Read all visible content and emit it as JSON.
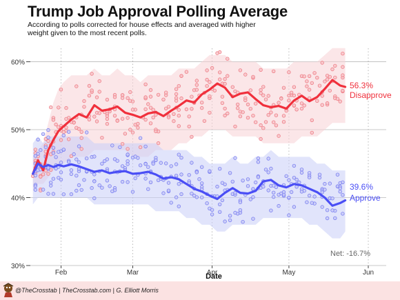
{
  "header": {
    "title": "Trump Job Approval Polling Average",
    "subtitle": "According to polls corrected for house effects and averaged with higher weight given to the most recent polls."
  },
  "footer": {
    "credit": "@TheCrosstab | TheCrosstab.com | G. Elliott Morris"
  },
  "colors": {
    "approve": "#4a4ef5",
    "disapprove": "#f0303c",
    "approve_band": "#c9cdf7",
    "disapprove_band": "#f8d1d5",
    "grid": "#9a9a9a",
    "footer_bg": "#fbe2e2"
  },
  "chart_data": {
    "type": "line",
    "xlabel": "Date",
    "ylabel": "",
    "x_ticks": [
      "Feb",
      "Mar",
      "Apr",
      "May",
      "Jun"
    ],
    "y_ticks": [
      "30%",
      "40%",
      "50%",
      "60%"
    ],
    "ylim": [
      30,
      63
    ],
    "xlim": [
      "2017-01-20",
      "2017-06-08"
    ],
    "grid": "horizontal solid at 30/40/50/60; vertical dotted at month starts",
    "legend": "inline labels at right end of lines",
    "series": [
      {
        "name": "Disapprove",
        "end_label": "56.3%",
        "color": "#f0303c",
        "x": [
          "2017-01-21",
          "2017-01-23",
          "2017-01-25",
          "2017-01-27",
          "2017-01-29",
          "2017-01-31",
          "2017-02-02",
          "2017-02-05",
          "2017-02-08",
          "2017-02-11",
          "2017-02-14",
          "2017-02-17",
          "2017-02-20",
          "2017-02-23",
          "2017-02-26",
          "2017-03-01",
          "2017-03-04",
          "2017-03-07",
          "2017-03-10",
          "2017-03-13",
          "2017-03-16",
          "2017-03-19",
          "2017-03-22",
          "2017-03-25",
          "2017-03-28",
          "2017-03-31",
          "2017-04-03",
          "2017-04-06",
          "2017-04-09",
          "2017-04-12",
          "2017-04-15",
          "2017-04-18",
          "2017-04-21",
          "2017-04-24",
          "2017-04-27",
          "2017-04-30",
          "2017-05-03",
          "2017-05-06",
          "2017-05-09",
          "2017-05-12",
          "2017-05-15",
          "2017-05-18",
          "2017-05-21",
          "2017-05-23"
        ],
        "y": [
          43.5,
          45.5,
          44.0,
          47.0,
          48.5,
          49.8,
          50.5,
          51.5,
          52.3,
          51.8,
          53.6,
          52.8,
          53.0,
          53.4,
          52.5,
          52.2,
          51.8,
          52.4,
          52.6,
          52.0,
          52.8,
          53.5,
          54.3,
          54.0,
          55.2,
          55.9,
          56.8,
          56.2,
          54.8,
          55.3,
          55.5,
          54.5,
          53.6,
          53.3,
          53.5,
          53.1,
          54.3,
          55.0,
          54.2,
          54.8,
          56.0,
          57.3,
          56.5,
          56.3
        ]
      },
      {
        "name": "Approve",
        "end_label": "39.6%",
        "color": "#4a4ef5",
        "x": [
          "2017-01-21",
          "2017-01-23",
          "2017-01-25",
          "2017-01-27",
          "2017-01-29",
          "2017-01-31",
          "2017-02-02",
          "2017-02-05",
          "2017-02-08",
          "2017-02-11",
          "2017-02-14",
          "2017-02-17",
          "2017-02-20",
          "2017-02-23",
          "2017-02-26",
          "2017-03-01",
          "2017-03-04",
          "2017-03-07",
          "2017-03-10",
          "2017-03-13",
          "2017-03-16",
          "2017-03-19",
          "2017-03-22",
          "2017-03-25",
          "2017-03-28",
          "2017-03-31",
          "2017-04-03",
          "2017-04-06",
          "2017-04-09",
          "2017-04-12",
          "2017-04-15",
          "2017-04-18",
          "2017-04-21",
          "2017-04-24",
          "2017-04-27",
          "2017-04-30",
          "2017-05-03",
          "2017-05-06",
          "2017-05-09",
          "2017-05-12",
          "2017-05-15",
          "2017-05-18",
          "2017-05-21",
          "2017-05-23"
        ],
        "y": [
          43.5,
          45.0,
          44.5,
          44.8,
          44.5,
          44.8,
          44.6,
          44.9,
          44.6,
          44.2,
          43.8,
          44.0,
          43.6,
          43.8,
          43.9,
          43.5,
          43.6,
          43.8,
          43.4,
          42.8,
          43.0,
          42.7,
          42.0,
          41.3,
          40.9,
          40.3,
          39.8,
          40.7,
          41.4,
          40.7,
          40.6,
          41.0,
          42.4,
          42.6,
          41.8,
          41.5,
          42.0,
          41.8,
          41.3,
          40.8,
          40.0,
          38.8,
          39.2,
          39.6
        ]
      }
    ],
    "bands": [
      {
        "series": "Disapprove",
        "upper": [
          46,
          47,
          48,
          51,
          54,
          56,
          57,
          58,
          58,
          58,
          59,
          58,
          58,
          59,
          58,
          58,
          57,
          58,
          58,
          58,
          58,
          59,
          59,
          59,
          60,
          61,
          61,
          61,
          60,
          60,
          60,
          60,
          59,
          59,
          59,
          59,
          60,
          60,
          60,
          60,
          61,
          62,
          62,
          62
        ],
        "lower": [
          41,
          42,
          42,
          43,
          44,
          45,
          45,
          46,
          46,
          46,
          47,
          47,
          47,
          47,
          47,
          46,
          46,
          46,
          47,
          47,
          47,
          48,
          48,
          49,
          49,
          50,
          50,
          50,
          49,
          49,
          49,
          49,
          48,
          48,
          48,
          48,
          48,
          49,
          49,
          49,
          50,
          51,
          51,
          51
        ]
      },
      {
        "series": "Approve",
        "upper": [
          48,
          49,
          48,
          49,
          49,
          49,
          49,
          49,
          49,
          49,
          48,
          48,
          48,
          48,
          48,
          48,
          48,
          48,
          48,
          47,
          47,
          47,
          47,
          46,
          46,
          45,
          45,
          45,
          46,
          45,
          45,
          46,
          46,
          47,
          46,
          46,
          46,
          46,
          46,
          45,
          45,
          44,
          44,
          44
        ],
        "lower": [
          39,
          40,
          40,
          40,
          40,
          40,
          40,
          40,
          40,
          40,
          39,
          39,
          39,
          39,
          39,
          39,
          39,
          39,
          38,
          38,
          38,
          38,
          37,
          37,
          36,
          36,
          35,
          35,
          36,
          36,
          36,
          36,
          37,
          37,
          37,
          37,
          37,
          37,
          36,
          36,
          35,
          34,
          34,
          35
        ]
      }
    ],
    "annotations": [
      {
        "text": "56.3%",
        "series": "Disapprove"
      },
      {
        "text": "Disapprove",
        "series": "Disapprove"
      },
      {
        "text": "39.6%",
        "series": "Approve"
      },
      {
        "text": "Approve",
        "series": "Approve"
      },
      {
        "text": "Net: -16.7%"
      }
    ]
  }
}
